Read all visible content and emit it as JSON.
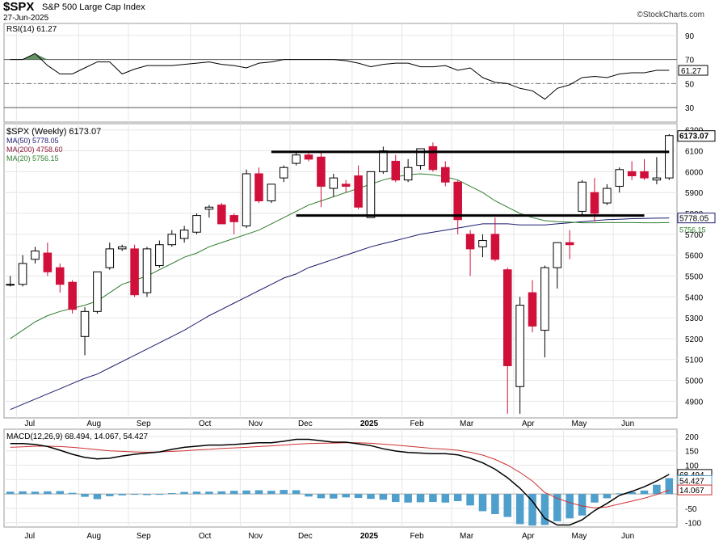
{
  "header": {
    "symbol": "$SPX",
    "name": "S&P 500 Large Cap Index",
    "date": "27-Jun-2025",
    "credit": "©StockCharts.com"
  },
  "colors": {
    "up_candle": "#ffffff",
    "down_candle": "#d0103a",
    "ma50": "#1a1a6e",
    "ma200": "#1a1a6e",
    "ma20": "#2e7d2e",
    "rsi_line": "#000000",
    "rsi_fill": "#4a7f4a",
    "macd_line": "#000000",
    "signal_line": "#d03030",
    "histogram": "#4f9fcc",
    "grid": "#e6e6e6"
  },
  "chart_data": [
    {
      "type": "line",
      "panel": "rsi",
      "legend": "RSI(14) 61.27",
      "last_value_label": "61.27",
      "y_ticks": [
        30,
        50,
        70,
        90
      ],
      "overbought": 70,
      "oversold": 30,
      "ylim": [
        18,
        100
      ],
      "values": [
        70,
        70,
        75,
        65,
        58,
        58,
        63,
        68,
        68,
        58,
        62,
        65,
        65,
        65,
        66,
        67,
        68,
        66,
        65,
        63,
        67,
        68,
        70,
        70,
        70,
        70,
        70,
        69,
        67,
        64,
        66,
        67,
        67,
        64,
        64,
        65,
        61,
        63,
        55,
        51,
        50,
        46,
        44,
        37,
        46,
        49,
        55,
        56,
        55,
        58,
        59,
        59,
        61,
        61
      ]
    },
    {
      "type": "candlestick",
      "panel": "price",
      "legend": [
        {
          "label": "$SPX (Weekly) 6173.07",
          "color": "#000000"
        },
        {
          "label": "MA(50) 5778.05",
          "color": "#1a1a6e"
        },
        {
          "label": "MA(200) 4758.60",
          "color": "#8b1a3a"
        },
        {
          "label": "MA(20) 5756.15",
          "color": "#2e7d2e"
        }
      ],
      "last_price_label": "6173.07",
      "ma50_label": "5778.05",
      "ma20_label": "5756.15",
      "y_ticks": [
        4900,
        5000,
        5100,
        5200,
        5300,
        5400,
        5500,
        5600,
        5700,
        5800,
        5900,
        6000,
        6100,
        6200
      ],
      "ylim": [
        4820,
        6230
      ],
      "x_labels": [
        "Jul",
        "Aug",
        "Sep",
        "Oct",
        "Nov",
        "Dec",
        "2025",
        "Feb",
        "Mar",
        "Apr",
        "May",
        "Jun"
      ],
      "x_label_weeks": [
        1,
        6,
        10,
        15,
        19,
        23,
        28,
        32,
        36,
        41,
        45,
        49
      ],
      "x_label_bold": [
        false,
        false,
        false,
        false,
        false,
        false,
        true,
        false,
        false,
        false,
        false,
        false
      ],
      "candles": [
        {
          "o": 5460,
          "h": 5500,
          "l": 5450,
          "c": 5460
        },
        {
          "o": 5460,
          "h": 5600,
          "l": 5450,
          "c": 5560
        },
        {
          "o": 5580,
          "h": 5640,
          "l": 5560,
          "c": 5620
        },
        {
          "o": 5610,
          "h": 5660,
          "l": 5500,
          "c": 5520
        },
        {
          "o": 5540,
          "h": 5560,
          "l": 5420,
          "c": 5460
        },
        {
          "o": 5470,
          "h": 5480,
          "l": 5320,
          "c": 5340
        },
        {
          "o": 5210,
          "h": 5350,
          "l": 5120,
          "c": 5330
        },
        {
          "o": 5330,
          "h": 5520,
          "l": 5320,
          "c": 5520
        },
        {
          "o": 5540,
          "h": 5660,
          "l": 5530,
          "c": 5630
        },
        {
          "o": 5630,
          "h": 5650,
          "l": 5620,
          "c": 5640
        },
        {
          "o": 5630,
          "h": 5650,
          "l": 5400,
          "c": 5410
        },
        {
          "o": 5420,
          "h": 5640,
          "l": 5400,
          "c": 5630
        },
        {
          "o": 5550,
          "h": 5670,
          "l": 5540,
          "c": 5650
        },
        {
          "o": 5650,
          "h": 5720,
          "l": 5640,
          "c": 5700
        },
        {
          "o": 5680,
          "h": 5740,
          "l": 5660,
          "c": 5720
        },
        {
          "o": 5710,
          "h": 5800,
          "l": 5700,
          "c": 5790
        },
        {
          "o": 5820,
          "h": 5840,
          "l": 5780,
          "c": 5830
        },
        {
          "o": 5840,
          "h": 5850,
          "l": 5750,
          "c": 5750
        },
        {
          "o": 5790,
          "h": 5800,
          "l": 5700,
          "c": 5760
        },
        {
          "o": 5740,
          "h": 6010,
          "l": 5730,
          "c": 5990
        },
        {
          "o": 5990,
          "h": 6020,
          "l": 5850,
          "c": 5860
        },
        {
          "o": 5860,
          "h": 5940,
          "l": 5850,
          "c": 5940
        },
        {
          "o": 5970,
          "h": 6030,
          "l": 5950,
          "c": 6020
        },
        {
          "o": 6040,
          "h": 6090,
          "l": 6030,
          "c": 6080
        },
        {
          "o": 6080,
          "h": 6100,
          "l": 6050,
          "c": 6060
        },
        {
          "o": 6070,
          "h": 6100,
          "l": 5830,
          "c": 5930
        },
        {
          "o": 5920,
          "h": 5990,
          "l": 5880,
          "c": 5970
        },
        {
          "o": 5940,
          "h": 5960,
          "l": 5900,
          "c": 5930
        },
        {
          "o": 5980,
          "h": 6030,
          "l": 5820,
          "c": 5830
        },
        {
          "o": 5780,
          "h": 6000,
          "l": 5780,
          "c": 6000
        },
        {
          "o": 6000,
          "h": 6120,
          "l": 5990,
          "c": 6100
        },
        {
          "o": 6050,
          "h": 6080,
          "l": 5950,
          "c": 5960
        },
        {
          "o": 5960,
          "h": 6060,
          "l": 5950,
          "c": 6020
        },
        {
          "o": 6030,
          "h": 6110,
          "l": 6010,
          "c": 6110
        },
        {
          "o": 6120,
          "h": 6140,
          "l": 6000,
          "c": 6010
        },
        {
          "o": 6020,
          "h": 6050,
          "l": 5930,
          "c": 5950
        },
        {
          "o": 5950,
          "h": 5960,
          "l": 5700,
          "c": 5770
        },
        {
          "o": 5700,
          "h": 5720,
          "l": 5500,
          "c": 5630
        },
        {
          "o": 5640,
          "h": 5700,
          "l": 5590,
          "c": 5670
        },
        {
          "o": 5700,
          "h": 5780,
          "l": 5570,
          "c": 5580
        },
        {
          "o": 5530,
          "h": 5540,
          "l": 4840,
          "c": 5070
        },
        {
          "o": 4970,
          "h": 5400,
          "l": 4840,
          "c": 5360
        },
        {
          "o": 5420,
          "h": 5480,
          "l": 5230,
          "c": 5260
        },
        {
          "o": 5240,
          "h": 5550,
          "l": 5110,
          "c": 5540
        },
        {
          "o": 5540,
          "h": 5660,
          "l": 5440,
          "c": 5660
        },
        {
          "o": 5660,
          "h": 5720,
          "l": 5580,
          "c": 5650
        },
        {
          "o": 5810,
          "h": 5960,
          "l": 5790,
          "c": 5950
        },
        {
          "o": 5900,
          "h": 5970,
          "l": 5760,
          "c": 5800
        },
        {
          "o": 5850,
          "h": 5940,
          "l": 5840,
          "c": 5920
        },
        {
          "o": 5930,
          "h": 6020,
          "l": 5900,
          "c": 6010
        },
        {
          "o": 6000,
          "h": 6050,
          "l": 5960,
          "c": 5980
        },
        {
          "o": 6000,
          "h": 6060,
          "l": 5960,
          "c": 5970
        },
        {
          "o": 5960,
          "h": 6070,
          "l": 5940,
          "c": 5970
        },
        {
          "o": 5970,
          "h": 6180,
          "l": 5960,
          "c": 6173
        }
      ],
      "ma20": [
        5200,
        5240,
        5280,
        5310,
        5330,
        5345,
        5360,
        5380,
        5420,
        5460,
        5480,
        5500,
        5530,
        5560,
        5590,
        5610,
        5640,
        5660,
        5680,
        5700,
        5720,
        5750,
        5780,
        5810,
        5840,
        5860,
        5880,
        5900,
        5920,
        5940,
        5960,
        5975,
        5985,
        5990,
        5985,
        5975,
        5960,
        5930,
        5900,
        5860,
        5830,
        5800,
        5780,
        5765,
        5760,
        5758,
        5755,
        5755,
        5756,
        5756,
        5756,
        5755,
        5755,
        5756
      ],
      "ma50": [
        4860,
        4885,
        4910,
        4935,
        4960,
        4985,
        5010,
        5030,
        5060,
        5090,
        5120,
        5150,
        5180,
        5210,
        5240,
        5275,
        5310,
        5340,
        5370,
        5400,
        5430,
        5460,
        5490,
        5510,
        5540,
        5560,
        5580,
        5600,
        5620,
        5640,
        5655,
        5670,
        5685,
        5700,
        5710,
        5720,
        5730,
        5740,
        5750,
        5750,
        5750,
        5745,
        5745,
        5745,
        5750,
        5755,
        5760,
        5765,
        5770,
        5772,
        5775,
        5776,
        5777,
        5778
      ],
      "support_line": {
        "value": 5790,
        "from_week": 23,
        "to_week": 51
      },
      "resistance_line": {
        "value": 6095,
        "from_week": 21,
        "to_week": 53
      }
    },
    {
      "type": "line",
      "panel": "macd",
      "legend": "MACD(12,26,9) 68.494, 14.067, 54.427",
      "labels": [
        "68.494",
        "54.427",
        "14.067"
      ],
      "y_ticks": [
        -100,
        -50,
        0,
        50,
        100,
        150,
        200
      ],
      "y_tick_labels": [
        "-100",
        "-50",
        "",
        "50",
        "100",
        "150",
        "200"
      ],
      "ylim": [
        -115,
        225
      ],
      "macd": [
        175,
        175,
        172,
        165,
        152,
        138,
        127,
        122,
        124,
        132,
        138,
        142,
        146,
        155,
        162,
        166,
        170,
        170,
        172,
        175,
        178,
        178,
        183,
        190,
        190,
        185,
        180,
        180,
        174,
        168,
        157,
        149,
        144,
        142,
        140,
        140,
        136,
        124,
        108,
        86,
        56,
        20,
        -25,
        -85,
        -108,
        -108,
        -90,
        -58,
        -33,
        -5,
        9,
        25,
        45,
        68
      ],
      "signal": [
        162,
        164,
        166,
        166,
        165,
        162,
        158,
        154,
        150,
        148,
        146,
        145,
        146,
        148,
        150,
        153,
        155,
        158,
        160,
        162,
        165,
        167,
        170,
        173,
        175,
        176,
        177,
        178,
        178,
        176,
        173,
        170,
        166,
        162,
        158,
        156,
        152,
        145,
        135,
        120,
        100,
        75,
        45,
        5,
        -15,
        -30,
        -42,
        -48,
        -45,
        -35,
        -25,
        -15,
        -2,
        14
      ],
      "histogram": [
        8,
        9,
        8,
        9,
        10,
        4,
        -10,
        -18,
        -8,
        -5,
        -3,
        -4,
        -3,
        3,
        7,
        8,
        8,
        9,
        11,
        12,
        13,
        11,
        14,
        13,
        -9,
        -15,
        -16,
        -12,
        -14,
        -17,
        -20,
        -28,
        -30,
        -29,
        -28,
        -30,
        -25,
        -40,
        -60,
        -70,
        -80,
        -105,
        -110,
        -108,
        -95,
        -85,
        -75,
        -30,
        -15,
        2,
        7,
        12,
        32,
        55
      ]
    }
  ]
}
